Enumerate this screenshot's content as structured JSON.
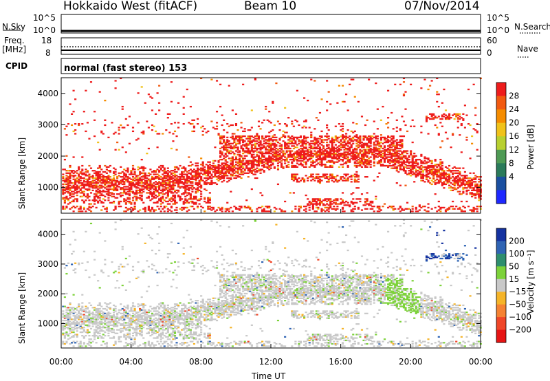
{
  "header": {
    "radar": "Hokkaido West (fitACF)",
    "beam": "Beam 10",
    "date": "07/Nov/2014"
  },
  "noise_panel": {
    "left_label": "N.Sky",
    "right_label": "N.Search",
    "left_ticks": [
      "10^5",
      "10^0"
    ],
    "right_ticks": [
      "10^5",
      "10^0"
    ]
  },
  "freq_panel": {
    "left_label_line1": "Freq.",
    "left_label_line2": "[MHz]",
    "right_label": "Nave",
    "left_ticks": [
      "18",
      "8"
    ],
    "right_ticks": [
      "60",
      "0"
    ]
  },
  "cpid_panel": {
    "label": "CPID",
    "text": "normal (fast stereo) 153"
  },
  "chart_data": [
    {
      "type": "heatmap",
      "title": "",
      "xlabel": "",
      "ylabel": "Slant Range [km]",
      "xlim": [
        "00:00",
        "24:00"
      ],
      "ylim": [
        180,
        4500
      ],
      "yticks": [
        "1000",
        "2000",
        "3000",
        "4000"
      ],
      "colorbar": {
        "label": "Power [dB]",
        "ticks": [
          "28",
          "24",
          "20",
          "16",
          "12",
          "8",
          "4"
        ],
        "colors": [
          "#ee1c1c",
          "#f25a10",
          "#f58c00",
          "#f0c21a",
          "#b8d030",
          "#4e9a54",
          "#2a7a5a",
          "#1a4fa0",
          "#1e28ff"
        ]
      }
    },
    {
      "type": "heatmap",
      "title": "",
      "xlabel": "Time UT",
      "ylabel": "Slant Range [km]",
      "xlim": [
        "00:00",
        "24:00"
      ],
      "ylim": [
        180,
        4500
      ],
      "xticks": [
        "00:00",
        "04:00",
        "08:00",
        "12:00",
        "16:00",
        "20:00",
        "00:00"
      ],
      "yticks": [
        "1000",
        "2000",
        "3000",
        "4000"
      ],
      "colorbar": {
        "label": "Velocity [m s⁻¹]",
        "ticks": [
          "200",
          "100",
          "50",
          "15",
          "−15",
          "−50",
          "−100",
          "−200"
        ],
        "colors": [
          "#1432a0",
          "#2f64b4",
          "#2e8e6e",
          "#7dd23a",
          "#c8c8c8",
          "#f5b428",
          "#f58232",
          "#f04628",
          "#e61414"
        ]
      }
    }
  ]
}
